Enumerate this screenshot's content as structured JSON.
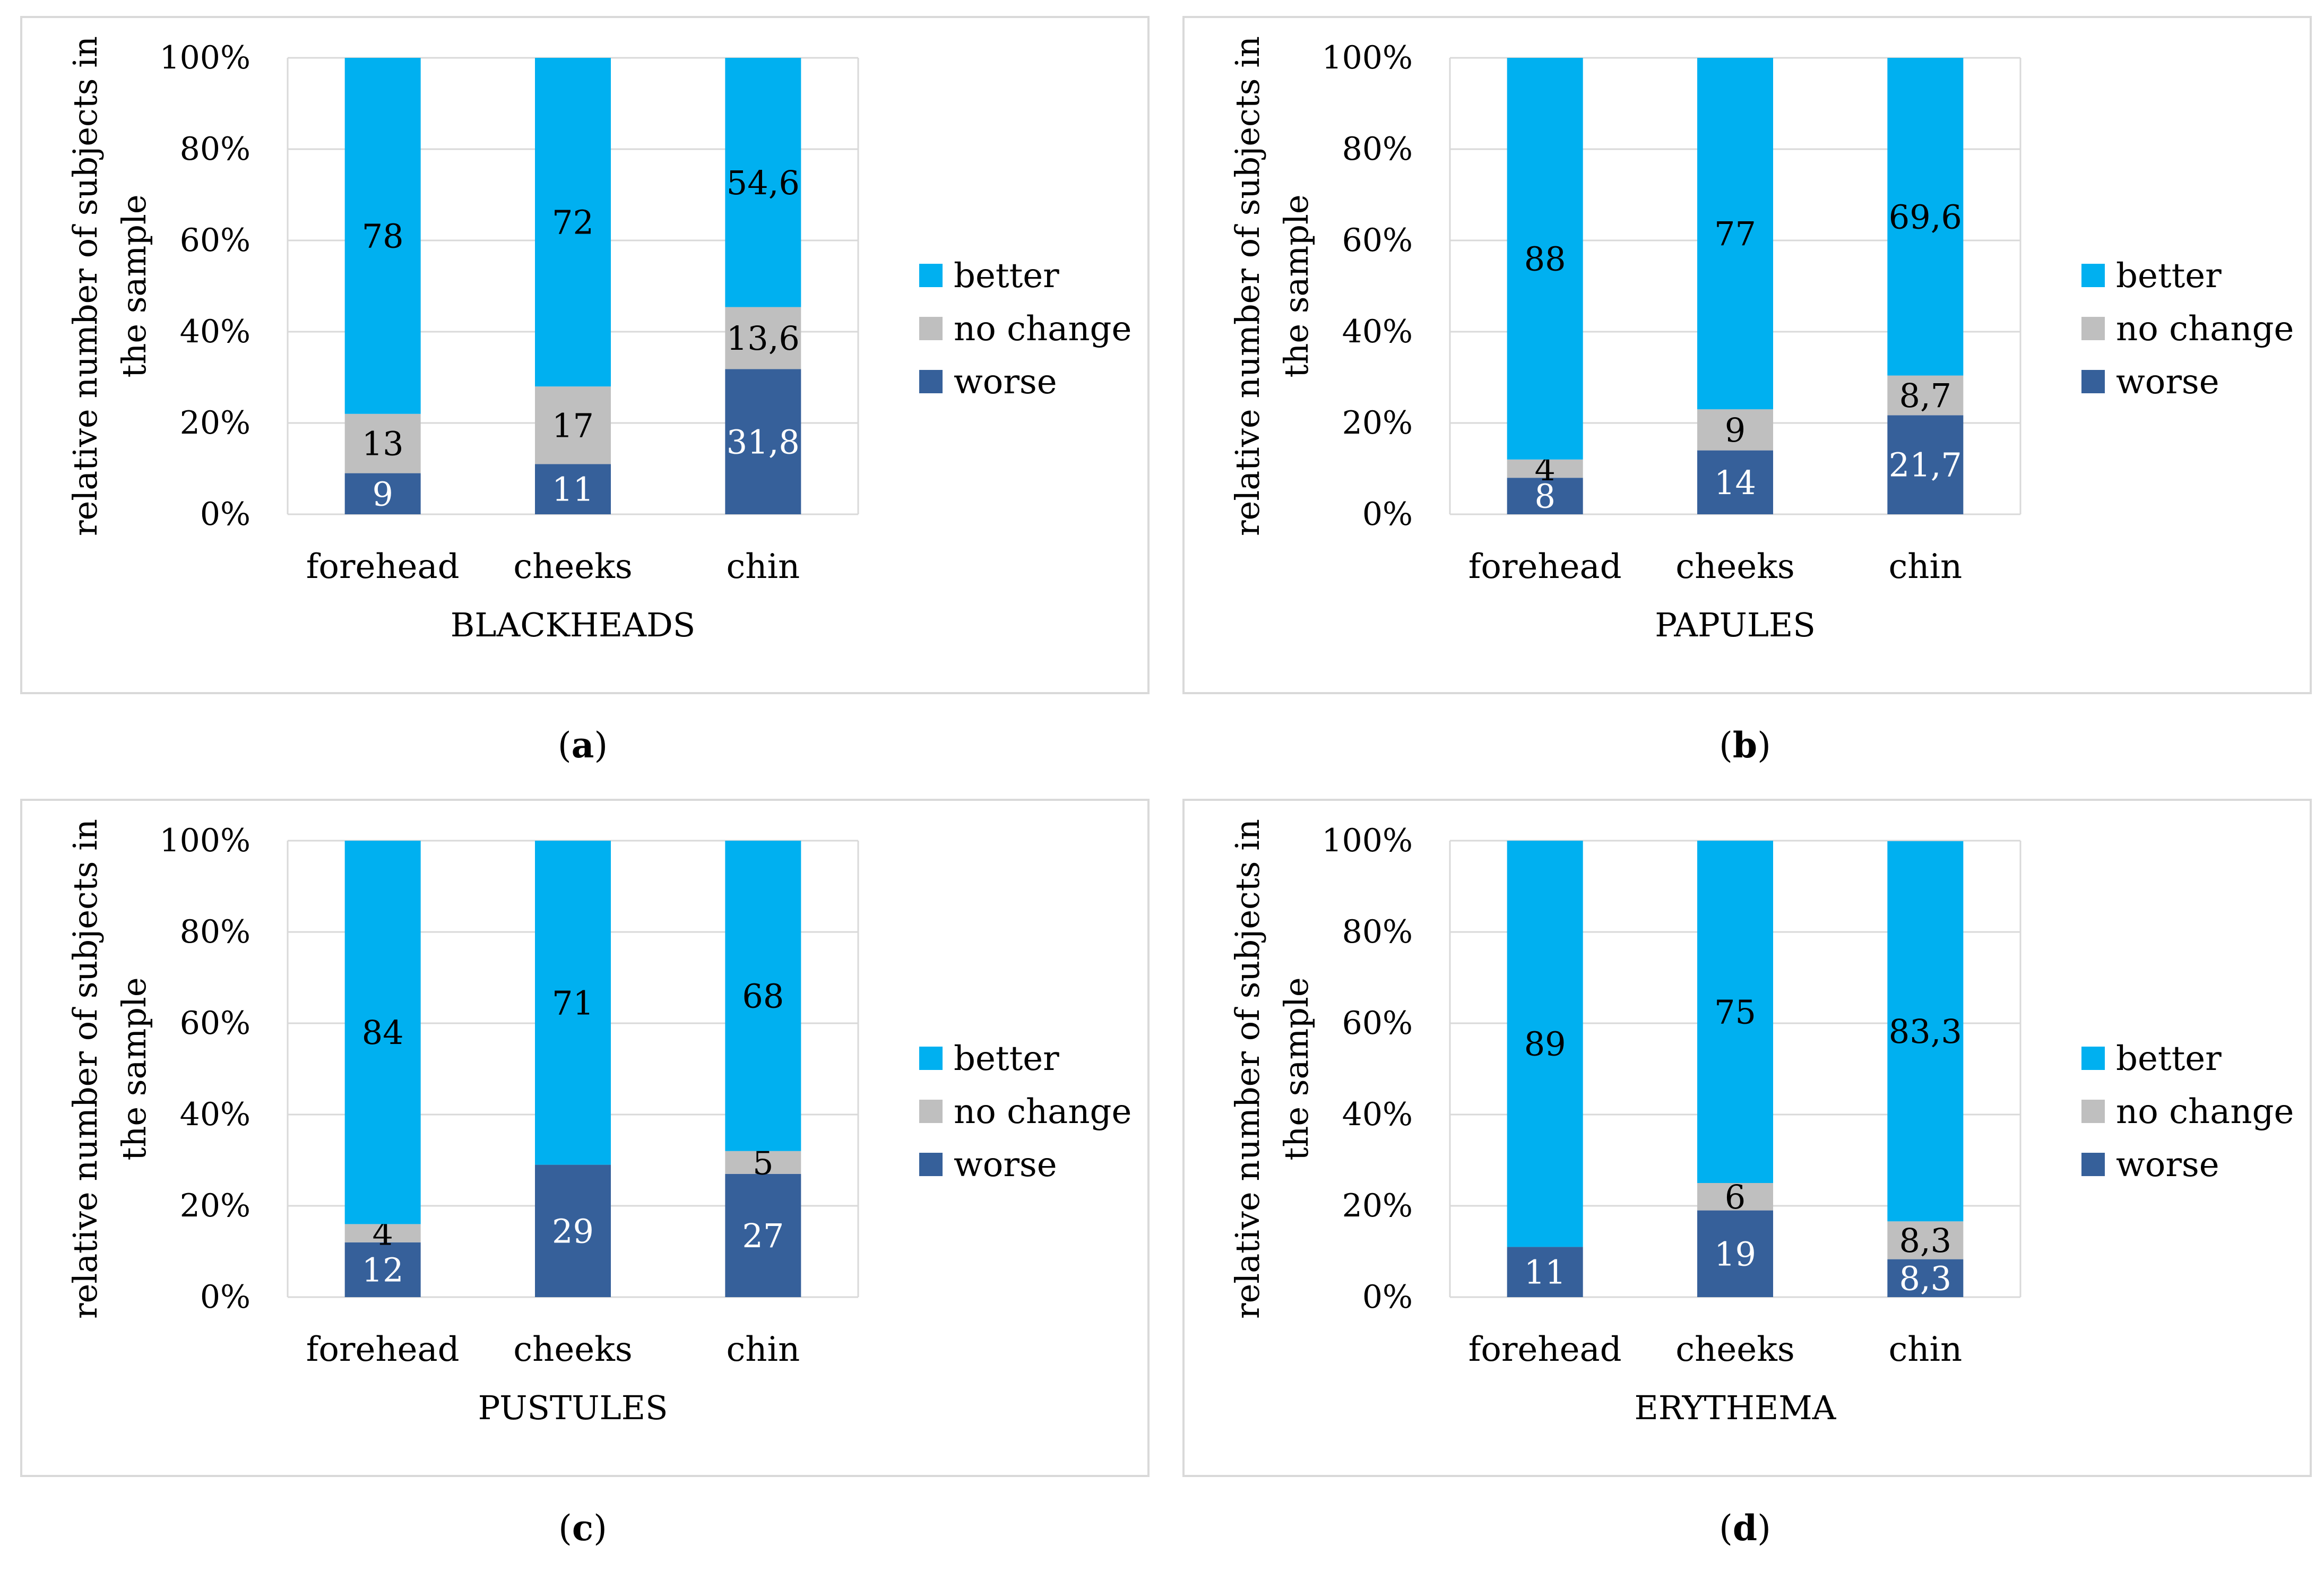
{
  "chart_data": [
    {
      "type": "bar",
      "stacked": true,
      "panel_label": "a",
      "xlabel": "BLACKHEADS",
      "ylabel_lines": [
        "relative number of subjects in",
        "the sample"
      ],
      "categories": [
        "forehead",
        "cheeks",
        "chin"
      ],
      "yticks": [
        "0%",
        "20%",
        "40%",
        "60%",
        "80%",
        "100%"
      ],
      "ylim": [
        0,
        100
      ],
      "series": [
        {
          "name": "worse",
          "color": "#36609a",
          "values": [
            9,
            11,
            31.8
          ],
          "labels": [
            "9",
            "11",
            "31,8"
          ],
          "label_color": "#ffffff"
        },
        {
          "name": "no change",
          "color": "#bfbfbf",
          "values": [
            13,
            17,
            13.6
          ],
          "labels": [
            "13",
            "17",
            "13,6"
          ],
          "label_color": "#000000"
        },
        {
          "name": "better",
          "color": "#00b0f0",
          "values": [
            78,
            72,
            54.6
          ],
          "labels": [
            "78",
            "72",
            "54,6"
          ],
          "label_color": "#000000"
        }
      ],
      "legend": [
        "better",
        "no change",
        "worse"
      ],
      "legend_position": "right"
    },
    {
      "type": "bar",
      "stacked": true,
      "panel_label": "b",
      "xlabel": "PAPULES",
      "ylabel_lines": [
        "relative number of subjects in",
        "the sample"
      ],
      "categories": [
        "forehead",
        "cheeks",
        "chin"
      ],
      "yticks": [
        "0%",
        "20%",
        "40%",
        "60%",
        "80%",
        "100%"
      ],
      "ylim": [
        0,
        100
      ],
      "series": [
        {
          "name": "worse",
          "color": "#36609a",
          "values": [
            8,
            14,
            21.7
          ],
          "labels": [
            "8",
            "14",
            "21,7"
          ],
          "label_color": "#ffffff"
        },
        {
          "name": "no change",
          "color": "#bfbfbf",
          "values": [
            4,
            9,
            8.7
          ],
          "labels": [
            "4",
            "9",
            "8,7"
          ],
          "label_color": "#000000"
        },
        {
          "name": "better",
          "color": "#00b0f0",
          "values": [
            88,
            77,
            69.6
          ],
          "labels": [
            "88",
            "77",
            "69,6"
          ],
          "label_color": "#000000"
        }
      ],
      "legend": [
        "better",
        "no change",
        "worse"
      ],
      "legend_position": "right"
    },
    {
      "type": "bar",
      "stacked": true,
      "panel_label": "c",
      "xlabel": "PUSTULES",
      "ylabel_lines": [
        "relative number of subjects in",
        "the sample"
      ],
      "categories": [
        "forehead",
        "cheeks",
        "chin"
      ],
      "yticks": [
        "0%",
        "20%",
        "40%",
        "60%",
        "80%",
        "100%"
      ],
      "ylim": [
        0,
        100
      ],
      "series": [
        {
          "name": "worse",
          "color": "#36609a",
          "values": [
            12,
            29,
            27
          ],
          "labels": [
            "12",
            "29",
            "27"
          ],
          "label_color": "#ffffff"
        },
        {
          "name": "no change",
          "color": "#bfbfbf",
          "values": [
            4,
            0,
            5
          ],
          "labels": [
            "4",
            "",
            "5"
          ],
          "label_color": "#000000"
        },
        {
          "name": "better",
          "color": "#00b0f0",
          "values": [
            84,
            71,
            68
          ],
          "labels": [
            "84",
            "71",
            "68"
          ],
          "label_color": "#000000"
        }
      ],
      "legend": [
        "better",
        "no change",
        "worse"
      ],
      "legend_position": "right"
    },
    {
      "type": "bar",
      "stacked": true,
      "panel_label": "d",
      "xlabel": "ERYTHEMA",
      "ylabel_lines": [
        "relative number of subjects in",
        "the sample"
      ],
      "categories": [
        "forehead",
        "cheeks",
        "chin"
      ],
      "yticks": [
        "0%",
        "20%",
        "40%",
        "60%",
        "80%",
        "100%"
      ],
      "ylim": [
        0,
        100
      ],
      "series": [
        {
          "name": "worse",
          "color": "#36609a",
          "values": [
            11,
            19,
            8.3
          ],
          "labels": [
            "11",
            "19",
            "8,3"
          ],
          "label_color": "#ffffff"
        },
        {
          "name": "no change",
          "color": "#bfbfbf",
          "values": [
            0,
            6,
            8.3
          ],
          "labels": [
            "",
            "6",
            "8,3"
          ],
          "label_color": "#000000"
        },
        {
          "name": "better",
          "color": "#00b0f0",
          "values": [
            89,
            75,
            83.3
          ],
          "labels": [
            "89",
            "75",
            "83,3"
          ],
          "label_color": "#000000"
        }
      ],
      "legend": [
        "better",
        "no change",
        "worse"
      ],
      "legend_position": "right"
    }
  ]
}
